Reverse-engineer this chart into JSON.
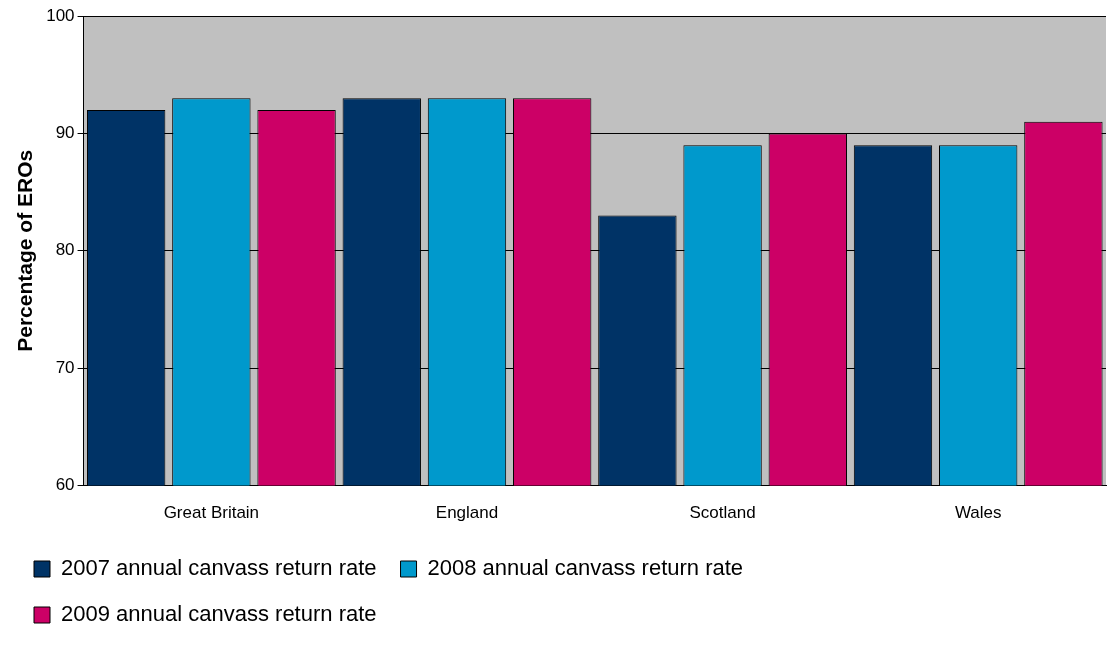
{
  "chart_data": {
    "type": "bar",
    "ylabel": "Percentage of EROs",
    "categories": [
      "Great Britain",
      "England",
      "Scotland",
      "Wales"
    ],
    "series": [
      {
        "name": "2007 annual canvass return rate",
        "color": "#003366",
        "values": [
          92,
          93,
          83,
          89
        ]
      },
      {
        "name": "2008 annual canvass return rate",
        "color": "#0099cc",
        "values": [
          93,
          93,
          89,
          89
        ]
      },
      {
        "name": "2009 annual canvass return rate",
        "color": "#cc0066",
        "values": [
          92,
          93,
          90,
          91
        ]
      }
    ],
    "ylim": [
      60,
      100
    ],
    "yticks": [
      60,
      70,
      80,
      90,
      100
    ],
    "grid": "y",
    "legend": "bottom"
  }
}
